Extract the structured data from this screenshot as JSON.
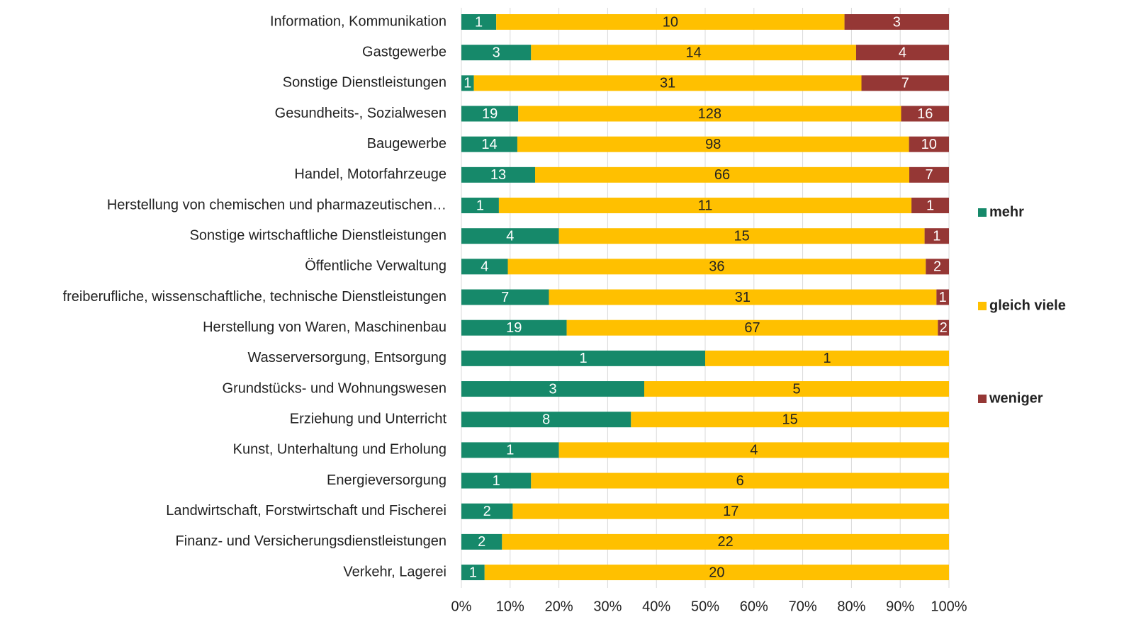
{
  "chart_data": {
    "type": "bar",
    "orientation": "horizontal",
    "stacking": "percent",
    "categories": [
      "Information, Kommunikation",
      "Gastgewerbe",
      "Sonstige Dienstleistungen",
      "Gesundheits-, Sozialwesen",
      "Baugewerbe",
      "Handel, Motorfahrzeuge",
      "Herstellung von chemischen und pharmazeutischen…",
      "Sonstige wirtschaftliche Dienstleistungen",
      "Öffentliche Verwaltung",
      "freiberufliche, wissenschaftliche, technische Dienstleistungen",
      "Herstellung von Waren, Maschinenbau",
      "Wasserversorgung, Entsorgung",
      "Grundstücks- und Wohnungswesen",
      "Erziehung und Unterricht",
      "Kunst, Unterhaltung und Erholung",
      "Energieversorgung",
      "Landwirtschaft, Forstwirtschaft und Fischerei",
      "Finanz- und Versicherungsdienstleistungen",
      "Verkehr, Lagerei"
    ],
    "series": [
      {
        "name": "mehr",
        "color": "#16896a",
        "label_color": "#ffffff",
        "values": [
          1,
          3,
          1,
          19,
          14,
          13,
          1,
          4,
          4,
          7,
          19,
          1,
          3,
          8,
          1,
          1,
          2,
          2,
          1
        ]
      },
      {
        "name": "gleich viele",
        "color": "#ffc000",
        "label_color": "#222222",
        "values": [
          10,
          14,
          31,
          128,
          98,
          66,
          11,
          15,
          36,
          31,
          67,
          1,
          5,
          15,
          4,
          6,
          17,
          22,
          20
        ]
      },
      {
        "name": "weniger",
        "color": "#953735",
        "label_color": "#ffffff",
        "values": [
          3,
          4,
          7,
          16,
          10,
          7,
          1,
          1,
          2,
          1,
          2,
          null,
          null,
          null,
          null,
          null,
          null,
          null,
          null
        ]
      }
    ],
    "xlim": [
      0,
      100
    ],
    "xticks": [
      {
        "value": 0,
        "label": "0%"
      },
      {
        "value": 10,
        "label": "10%"
      },
      {
        "value": 20,
        "label": "20%"
      },
      {
        "value": 30,
        "label": "30%"
      },
      {
        "value": 40,
        "label": "40%"
      },
      {
        "value": 50,
        "label": "50%"
      },
      {
        "value": 60,
        "label": "60%"
      },
      {
        "value": 70,
        "label": "70%"
      },
      {
        "value": 80,
        "label": "80%"
      },
      {
        "value": 90,
        "label": "90%"
      },
      {
        "value": 100,
        "label": "100%"
      }
    ],
    "grid": true,
    "legend": "right"
  }
}
